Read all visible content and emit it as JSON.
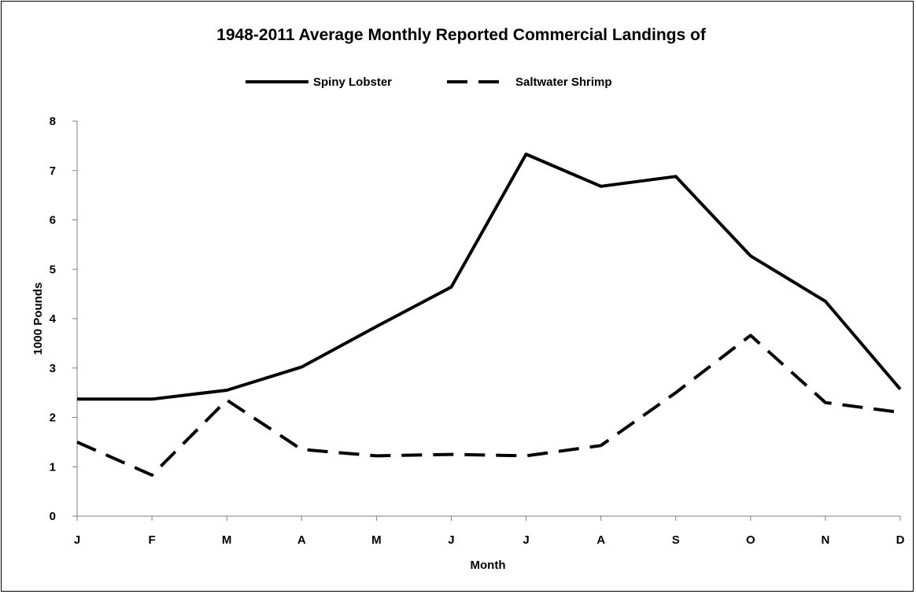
{
  "chart_data": {
    "type": "line",
    "title": "1948-2011 Average Monthly Reported Commercial Landings of",
    "xlabel": "Month",
    "ylabel": "1000 Pounds",
    "categories": [
      "J",
      "F",
      "M",
      "A",
      "M",
      "J",
      "J",
      "A",
      "S",
      "O",
      "N",
      "D"
    ],
    "ylim": [
      0,
      8
    ],
    "yticks": [
      "0",
      "1",
      "2",
      "3",
      "4",
      "5",
      "6",
      "7",
      "8"
    ],
    "grid": false,
    "legend_position": "top",
    "series": [
      {
        "name": "Spiny Lobster",
        "style": "solid",
        "color": "#000000",
        "values": [
          2.37,
          2.37,
          2.55,
          3.02,
          3.84,
          4.64,
          7.33,
          6.68,
          6.88,
          5.27,
          4.35,
          2.57
        ]
      },
      {
        "name": "Saltwater Shrimp",
        "style": "dashed",
        "color": "#000000",
        "values": [
          1.5,
          0.83,
          2.35,
          1.35,
          1.22,
          1.25,
          1.22,
          1.43,
          2.5,
          3.66,
          2.3,
          2.1
        ]
      }
    ]
  }
}
